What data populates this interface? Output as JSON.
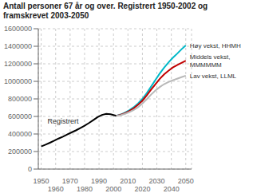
{
  "chart_data": {
    "type": "line",
    "title": "Antall personer 67 år og over. Registrert 1950-2002 og\nframskrevet 2003-2050",
    "xlim": [
      1948,
      2054
    ],
    "xticks": [
      1950,
      1960,
      1970,
      1980,
      1990,
      2000,
      2010,
      2020,
      2030,
      2040,
      2050
    ],
    "ylim": [
      0,
      1600000
    ],
    "yticks": [
      0,
      200000,
      400000,
      600000,
      800000,
      1000000,
      1200000,
      1400000,
      1600000
    ],
    "grid": true,
    "series": [
      {
        "name": "Registrert",
        "color": "#000000",
        "x": [
          1950,
          1953,
          1956,
          1959,
          1962,
          1965,
          1968,
          1971,
          1974,
          1977,
          1980,
          1983,
          1986,
          1989,
          1992,
          1995,
          1998,
          2001,
          2002
        ],
        "values": [
          258000,
          278000,
          300000,
          323000,
          348000,
          370000,
          395000,
          418000,
          441000,
          468000,
          495000,
          525000,
          558000,
          592000,
          617000,
          630000,
          624000,
          612000,
          608000
        ]
      },
      {
        "name": "Høy vekst, HHMH",
        "color": "#00b8c8",
        "x": [
          2002,
          2005,
          2008,
          2011,
          2014,
          2017,
          2020,
          2023,
          2026,
          2029,
          2032,
          2035,
          2038,
          2041,
          2044,
          2047,
          2050
        ],
        "values": [
          608000,
          622000,
          645000,
          672000,
          705000,
          748000,
          800000,
          866000,
          940000,
          1016000,
          1090000,
          1155000,
          1215000,
          1268000,
          1315000,
          1365000,
          1410000
        ]
      },
      {
        "name": "Middels vekst,\nMMMMMM",
        "color": "#c00000",
        "x": [
          2002,
          2005,
          2008,
          2011,
          2014,
          2017,
          2020,
          2023,
          2026,
          2029,
          2032,
          2035,
          2038,
          2041,
          2044,
          2047,
          2050
        ],
        "values": [
          608000,
          619000,
          638000,
          663000,
          693000,
          733000,
          780000,
          840000,
          905000,
          968000,
          1028000,
          1080000,
          1120000,
          1158000,
          1185000,
          1210000,
          1235000
        ]
      },
      {
        "name": "Lav vekst, LLML",
        "color": "#b8b8b8",
        "x": [
          2002,
          2005,
          2008,
          2011,
          2014,
          2017,
          2020,
          2023,
          2026,
          2029,
          2032,
          2035,
          2038,
          2041,
          2044,
          2047,
          2050
        ],
        "values": [
          608000,
          614000,
          630000,
          650000,
          674000,
          706000,
          748000,
          796000,
          849000,
          895000,
          935000,
          968000,
          992000,
          1012000,
          1030000,
          1048000,
          1065000
        ]
      }
    ]
  }
}
